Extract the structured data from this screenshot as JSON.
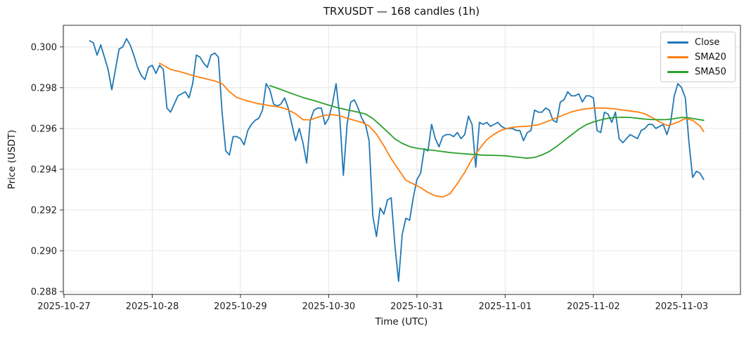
{
  "figure": {
    "background": "#ffffff",
    "plot_background": "#ffffff",
    "grid_color": "#e6e6e6",
    "spine_color": "#333333",
    "text_color": "#111111"
  },
  "chart_data": {
    "type": "line",
    "title": "TRXUSDT — 168 candles (1h)",
    "xlabel": "Time (UTC)",
    "ylabel": "Price (USDT)",
    "grid": true,
    "legend": {
      "position": "upper right",
      "entries": [
        "Close",
        "SMA20",
        "SMA50"
      ]
    },
    "x_unit": "hour index of 168 one-hour candles (0 = first candle)",
    "xlim_hours": [
      -7.19,
      177.0
    ],
    "ylim": [
      0.28786,
      0.30106
    ],
    "x_ticks": [
      {
        "hour": -7,
        "label": "2025-10-27"
      },
      {
        "hour": 17,
        "label": "2025-10-28"
      },
      {
        "hour": 41,
        "label": "2025-10-29"
      },
      {
        "hour": 65,
        "label": "2025-10-30"
      },
      {
        "hour": 89,
        "label": "2025-10-31"
      },
      {
        "hour": 113,
        "label": "2025-11-01"
      },
      {
        "hour": 137,
        "label": "2025-11-02"
      },
      {
        "hour": 161,
        "label": "2025-11-03"
      }
    ],
    "y_ticks": [
      {
        "value": 0.288,
        "label": "0.288"
      },
      {
        "value": 0.29,
        "label": "0.290"
      },
      {
        "value": 0.292,
        "label": "0.292"
      },
      {
        "value": 0.294,
        "label": "0.294"
      },
      {
        "value": 0.296,
        "label": "0.296"
      },
      {
        "value": 0.298,
        "label": "0.298"
      },
      {
        "value": 0.3,
        "label": "0.300"
      }
    ],
    "series": [
      {
        "name": "Close",
        "color": "#1f77b4",
        "line_width": 1.8,
        "x_start_hour": 0,
        "x_step_hours": 1,
        "values": [
          0.3003,
          0.3002,
          0.2996,
          0.3001,
          0.2995,
          0.2989,
          0.2979,
          0.2989,
          0.2999,
          0.3,
          0.3004,
          0.3001,
          0.2996,
          0.299,
          0.2986,
          0.2984,
          0.299,
          0.2991,
          0.2987,
          0.2991,
          0.2989,
          0.297,
          0.2968,
          0.2972,
          0.2976,
          0.2977,
          0.2978,
          0.2975,
          0.2982,
          0.2996,
          0.2995,
          0.2992,
          0.299,
          0.2996,
          0.2997,
          0.2995,
          0.2968,
          0.2949,
          0.2947,
          0.2956,
          0.2956,
          0.2955,
          0.2952,
          0.2959,
          0.2962,
          0.2964,
          0.2965,
          0.2969,
          0.2982,
          0.2979,
          0.2972,
          0.2971,
          0.2972,
          0.2975,
          0.297,
          0.2962,
          0.2954,
          0.296,
          0.2953,
          0.2943,
          0.2964,
          0.2969,
          0.297,
          0.297,
          0.2962,
          0.2965,
          0.2972,
          0.2982,
          0.2966,
          0.2937,
          0.2962,
          0.2973,
          0.2974,
          0.297,
          0.2965,
          0.2962,
          0.2954,
          0.2917,
          0.2907,
          0.2921,
          0.2918,
          0.2925,
          0.2926,
          0.2903,
          0.2885,
          0.2908,
          0.2916,
          0.2915,
          0.2926,
          0.2935,
          0.2938,
          0.295,
          0.2949,
          0.2962,
          0.2955,
          0.2951,
          0.2956,
          0.2957,
          0.2957,
          0.2956,
          0.2958,
          0.2955,
          0.2957,
          0.2966,
          0.2962,
          0.2941,
          0.2963,
          0.2962,
          0.2963,
          0.2961,
          0.2962,
          0.2963,
          0.2961,
          0.296,
          0.296,
          0.296,
          0.2959,
          0.2959,
          0.2954,
          0.2958,
          0.2959,
          0.2969,
          0.2968,
          0.2968,
          0.297,
          0.2969,
          0.2964,
          0.2963,
          0.2973,
          0.2974,
          0.2978,
          0.2976,
          0.2976,
          0.2977,
          0.2973,
          0.2976,
          0.2976,
          0.2975,
          0.2959,
          0.2958,
          0.2968,
          0.2967,
          0.2963,
          0.2968,
          0.2955,
          0.2953,
          0.2955,
          0.2957,
          0.2956,
          0.2955,
          0.2959,
          0.296,
          0.2962,
          0.2962,
          0.296,
          0.2961,
          0.2962,
          0.2957,
          0.2963,
          0.2976,
          0.2982,
          0.298,
          0.2975,
          0.2953,
          0.2936,
          0.2939,
          0.2938,
          0.2935
        ]
      },
      {
        "name": "SMA20",
        "color": "#ff7f0e",
        "line_width": 1.8,
        "window": 20,
        "points": [
          [
            19,
            0.2992
          ],
          [
            22,
            0.2989
          ],
          [
            25,
            0.29876
          ],
          [
            28,
            0.2986
          ],
          [
            31,
            0.29846
          ],
          [
            34,
            0.29833
          ],
          [
            36,
            0.2982
          ],
          [
            38,
            0.2978
          ],
          [
            40,
            0.29752
          ],
          [
            43,
            0.29734
          ],
          [
            46,
            0.29721
          ],
          [
            49,
            0.29712
          ],
          [
            52,
            0.29704
          ],
          [
            54,
            0.29691
          ],
          [
            56,
            0.29672
          ],
          [
            58,
            0.29643
          ],
          [
            60,
            0.29642
          ],
          [
            62,
            0.29655
          ],
          [
            64,
            0.29665
          ],
          [
            66,
            0.29668
          ],
          [
            68,
            0.29662
          ],
          [
            70,
            0.2965
          ],
          [
            72,
            0.2964
          ],
          [
            74,
            0.2963
          ],
          [
            76,
            0.29612
          ],
          [
            78,
            0.29572
          ],
          [
            80,
            0.29515
          ],
          [
            82,
            0.29452
          ],
          [
            84,
            0.29398
          ],
          [
            86,
            0.29346
          ],
          [
            88,
            0.29328
          ],
          [
            90,
            0.2931
          ],
          [
            92,
            0.29286
          ],
          [
            94,
            0.2927
          ],
          [
            96,
            0.29264
          ],
          [
            98,
            0.2928
          ],
          [
            100,
            0.2933
          ],
          [
            102,
            0.29385
          ],
          [
            104,
            0.2945
          ],
          [
            106,
            0.295
          ],
          [
            108,
            0.29545
          ],
          [
            110,
            0.29572
          ],
          [
            112,
            0.29592
          ],
          [
            114,
            0.29602
          ],
          [
            116,
            0.29608
          ],
          [
            119,
            0.29611
          ],
          [
            122,
            0.29618
          ],
          [
            125,
            0.29638
          ],
          [
            128,
            0.2966
          ],
          [
            131,
            0.29681
          ],
          [
            134,
            0.29694
          ],
          [
            137,
            0.297
          ],
          [
            140,
            0.297
          ],
          [
            143,
            0.29696
          ],
          [
            146,
            0.29688
          ],
          [
            149,
            0.29681
          ],
          [
            151,
            0.29672
          ],
          [
            153,
            0.29653
          ],
          [
            155,
            0.29632
          ],
          [
            157,
            0.29615
          ],
          [
            158,
            0.29618
          ],
          [
            160,
            0.29631
          ],
          [
            162,
            0.29649
          ],
          [
            164,
            0.2964
          ],
          [
            166,
            0.29612
          ],
          [
            167,
            0.29585
          ]
        ]
      },
      {
        "name": "SMA50",
        "color": "#2ca02c",
        "line_width": 1.8,
        "window": 50,
        "points": [
          [
            49,
            0.2981
          ],
          [
            52,
            0.29791
          ],
          [
            55,
            0.29771
          ],
          [
            58,
            0.29752
          ],
          [
            61,
            0.29737
          ],
          [
            64,
            0.2972
          ],
          [
            67,
            0.29704
          ],
          [
            70,
            0.29691
          ],
          [
            73,
            0.2968
          ],
          [
            75,
            0.29671
          ],
          [
            77,
            0.29649
          ],
          [
            79,
            0.29617
          ],
          [
            81,
            0.29583
          ],
          [
            83,
            0.29549
          ],
          [
            85,
            0.29527
          ],
          [
            87,
            0.29511
          ],
          [
            89,
            0.29503
          ],
          [
            92,
            0.29496
          ],
          [
            95,
            0.29489
          ],
          [
            98,
            0.29482
          ],
          [
            101,
            0.29477
          ],
          [
            104,
            0.29473
          ],
          [
            107,
            0.29469
          ],
          [
            110,
            0.29468
          ],
          [
            113,
            0.29466
          ],
          [
            115,
            0.29462
          ],
          [
            117,
            0.29458
          ],
          [
            119,
            0.29454
          ],
          [
            121,
            0.29458
          ],
          [
            123,
            0.2947
          ],
          [
            125,
            0.29487
          ],
          [
            127,
            0.29512
          ],
          [
            129,
            0.2954
          ],
          [
            131,
            0.29568
          ],
          [
            133,
            0.29596
          ],
          [
            135,
            0.29618
          ],
          [
            137,
            0.29632
          ],
          [
            139,
            0.29642
          ],
          [
            141,
            0.2965
          ],
          [
            143,
            0.29654
          ],
          [
            145,
            0.29655
          ],
          [
            147,
            0.29654
          ],
          [
            149,
            0.2965
          ],
          [
            151,
            0.29646
          ],
          [
            153,
            0.29644
          ],
          [
            155,
            0.29643
          ],
          [
            157,
            0.29644
          ],
          [
            159,
            0.29648
          ],
          [
            161,
            0.29654
          ],
          [
            163,
            0.29652
          ],
          [
            165,
            0.29646
          ],
          [
            167,
            0.2964
          ]
        ]
      }
    ]
  }
}
